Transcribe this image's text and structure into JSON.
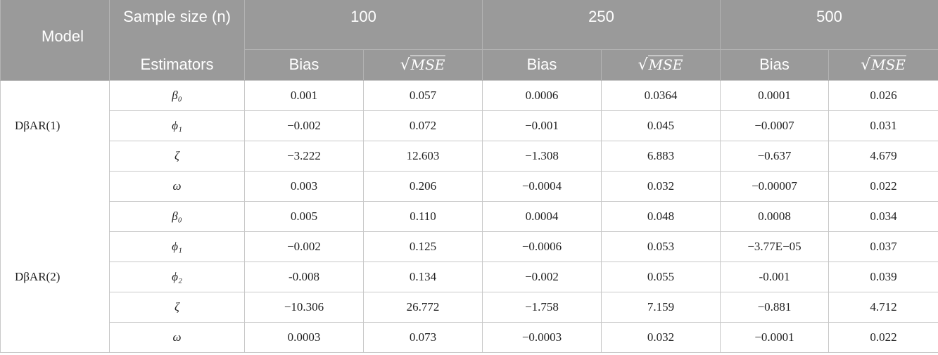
{
  "header": {
    "model": "Model",
    "sample_size": "Sample size (n)",
    "estimators": "Estimators",
    "n100": "100",
    "n250": "250",
    "n500": "500",
    "bias": "Bias",
    "mse": "MSE"
  },
  "rows": [
    {
      "model": "",
      "est": "β₀",
      "v": [
        "0.001",
        "0.057",
        "0.0006",
        "0.0364",
        "0.0001",
        "0.026"
      ]
    },
    {
      "model": "DβAR(1)",
      "est": "ϕ₁",
      "v": [
        "−0.002",
        "0.072",
        "−0.001",
        "0.045",
        "−0.0007",
        "0.031"
      ]
    },
    {
      "model": "",
      "est": "ζ",
      "v": [
        "−3.222",
        "12.603",
        "−1.308",
        "6.883",
        "−0.637",
        "4.679"
      ]
    },
    {
      "model": "",
      "est": "ω",
      "v": [
        "0.003",
        "0.206",
        "−0.0004",
        "0.032",
        "−0.00007",
        "0.022"
      ]
    },
    {
      "model": "",
      "est": "β₀",
      "v": [
        "0.005",
        "0.110",
        "0.0004",
        "0.048",
        "0.0008",
        "0.034"
      ]
    },
    {
      "model": "",
      "est": "ϕ₁",
      "v": [
        "−0.002",
        "0.125",
        "−0.0006",
        "0.053",
        "−3.77E−05",
        "0.037"
      ]
    },
    {
      "model": "DβAR(2)",
      "est": "ϕ₂",
      "v": [
        "-0.008",
        "0.134",
        "−0.002",
        "0.055",
        "-0.001",
        "0.039"
      ]
    },
    {
      "model": "",
      "est": "ζ",
      "v": [
        "−10.306",
        "26.772",
        "−1.758",
        "7.159",
        "−0.881",
        "4.712"
      ]
    },
    {
      "model": "",
      "est": "ω",
      "v": [
        "0.0003",
        "0.073",
        "−0.0003",
        "0.032",
        "−0.0001",
        "0.022"
      ]
    }
  ]
}
